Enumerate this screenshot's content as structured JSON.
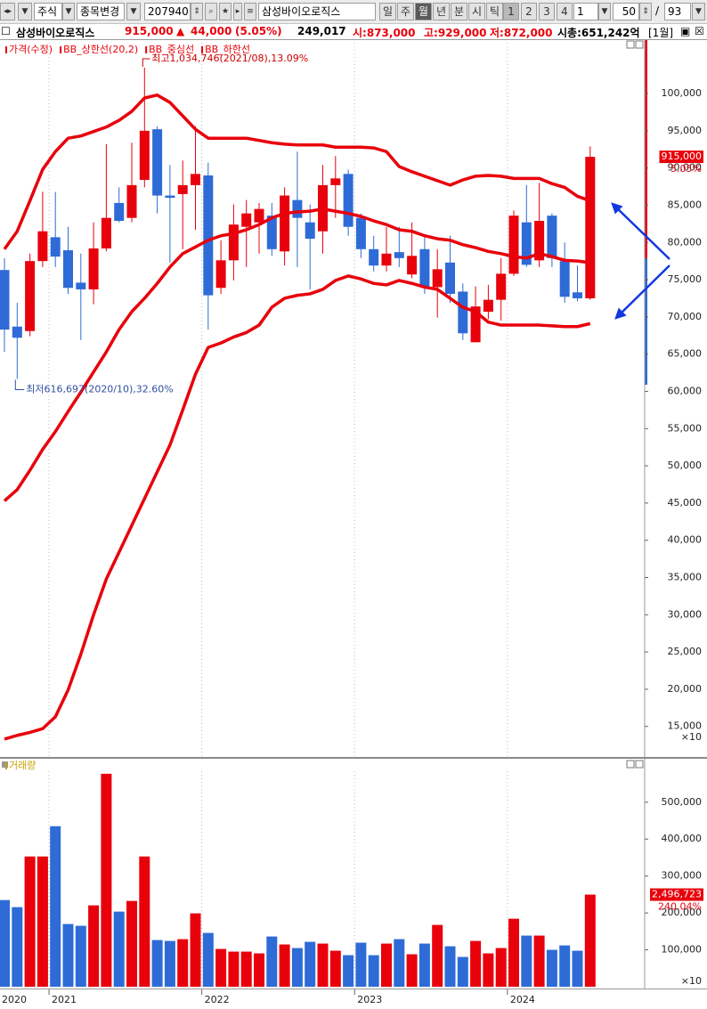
{
  "toolbar": {
    "market": "주식",
    "change_stock": "종목변경",
    "code": "207940",
    "name": "삼성바이오로직스",
    "periods": [
      "일",
      "주",
      "월",
      "년",
      "분",
      "시",
      "틱"
    ],
    "selected_period": "월",
    "presets": [
      "1",
      "2",
      "3",
      "4"
    ],
    "selected_preset": "1",
    "interval": "1",
    "count": "50",
    "separator": "/",
    "total": "93"
  },
  "header": {
    "name": "삼성바이오로직스",
    "price": "915,000",
    "arrow": "▲",
    "change": "44,000",
    "change_pct": "(5.05%)",
    "volume": "249,017",
    "open": "시:873,000",
    "high": "고:929,000",
    "low": "저:872,000",
    "market_cap": "시총:651,242억",
    "period": "[1월]"
  },
  "chart_data": [
    {
      "type": "candlestick",
      "up_color": "#e8000b",
      "down_color": "#2e6bd6",
      "grid": "x",
      "categories": [
        "2020",
        null,
        null,
        null,
        "2021",
        null,
        null,
        null,
        null,
        null,
        null,
        null,
        null,
        null,
        null,
        null,
        "2022",
        null,
        null,
        null,
        null,
        null,
        null,
        null,
        null,
        null,
        null,
        null,
        "2023",
        null,
        null,
        null,
        null,
        null,
        null,
        null,
        null,
        null,
        null,
        null,
        "2024",
        null,
        null,
        null,
        null,
        null,
        null
      ],
      "candles": {
        "name": "가격(수정)",
        "open": [
          76300,
          68700,
          68100,
          77500,
          80700,
          78950,
          74600,
          73700,
          79200,
          85300,
          83300,
          88400,
          95200,
          86300,
          86500,
          87700,
          89000,
          73900,
          77600,
          82100,
          82700,
          83600,
          78800,
          85700,
          82700,
          81500,
          87700,
          89200,
          83300,
          79100,
          76900,
          78700,
          75700,
          79100,
          74000,
          77300,
          73400,
          66600,
          70700,
          72300,
          75800,
          82700,
          77600,
          83600,
          77500,
          73300,
          72500
        ],
        "high": [
          77900,
          71900,
          78500,
          86800,
          86800,
          82100,
          78500,
          82700,
          93200,
          87400,
          93400,
          103474.6,
          95600,
          90400,
          91000,
          95600,
          90700,
          80300,
          85100,
          85700,
          85300,
          85300,
          87400,
          92200,
          85100,
          90400,
          91600,
          89800,
          83900,
          80900,
          82100,
          82100,
          82700,
          80900,
          79100,
          80900,
          74500,
          74100,
          74300,
          77900,
          84300,
          87700,
          88000,
          83900,
          80000,
          76900,
          92900
        ],
        "low": [
          65300,
          61669.7,
          67400,
          76700,
          76700,
          73100,
          66900,
          71700,
          78800,
          82700,
          82700,
          87400,
          83900,
          77300,
          79100,
          81700,
          68300,
          73100,
          74900,
          76700,
          78500,
          78200,
          76900,
          76700,
          73700,
          78500,
          83300,
          80900,
          77900,
          76100,
          76100,
          76700,
          75200,
          73100,
          69900,
          71900,
          66900,
          66600,
          69700,
          69500,
          75500,
          76700,
          76700,
          76700,
          71900,
          72100,
          72300
        ],
        "close": [
          68300,
          67200,
          77500,
          81500,
          78100,
          73900,
          73700,
          79200,
          83300,
          82900,
          87700,
          95000,
          86300,
          86000,
          87700,
          89200,
          72900,
          77600,
          82400,
          83900,
          84500,
          79100,
          86300,
          83300,
          80500,
          87700,
          88600,
          82100,
          79100,
          76900,
          78500,
          77900,
          78200,
          74000,
          76400,
          73100,
          67800,
          71400,
          72300,
          75800,
          83600,
          77000,
          82900,
          77900,
          72700,
          72500,
          91500
        ]
      },
      "series": [
        {
          "name": "BB_상한선(20,2)",
          "color": "#e8000b",
          "values": [
            79100,
            81500,
            85600,
            89800,
            92200,
            94000,
            94300,
            94900,
            95500,
            96400,
            97600,
            99400,
            99800,
            98800,
            97000,
            95200,
            94000,
            94000,
            94000,
            94000,
            93700,
            93400,
            93200,
            93100,
            93100,
            93100,
            92800,
            92800,
            92800,
            92700,
            92200,
            90200,
            89500,
            88900,
            88300,
            87700,
            88400,
            88900,
            89000,
            88900,
            88600,
            88600,
            88600,
            87900,
            87400,
            86200,
            85600
          ]
        },
        {
          "name": "BB_중심선",
          "color": "#e8000b",
          "values": [
            45300,
            46800,
            49400,
            52200,
            54600,
            57300,
            59900,
            62600,
            65300,
            68300,
            70700,
            72500,
            74500,
            76700,
            78500,
            79400,
            80300,
            80900,
            81200,
            81700,
            82400,
            83300,
            83900,
            84100,
            84200,
            84500,
            84200,
            83900,
            83500,
            82900,
            82400,
            81700,
            81500,
            80900,
            80500,
            80300,
            79700,
            79300,
            78800,
            78500,
            78100,
            77900,
            78500,
            78100,
            77600,
            77500,
            77300
          ]
        },
        {
          "name": "BB_하한선",
          "color": "#e8000b",
          "values": [
            13300,
            13800,
            14200,
            14700,
            16300,
            19900,
            24700,
            30000,
            34800,
            38400,
            42000,
            45600,
            49200,
            52800,
            57500,
            62300,
            65900,
            66500,
            67300,
            67900,
            68900,
            71300,
            72500,
            72900,
            73100,
            73700,
            74900,
            75500,
            75100,
            74500,
            74300,
            74900,
            74500,
            74000,
            73700,
            72500,
            71300,
            70700,
            69300,
            68900,
            68900,
            68900,
            68900,
            68800,
            68700,
            68700,
            69100
          ]
        }
      ],
      "ylim": [
        10900,
        107300
      ],
      "yticks": [
        {
          "value": 15000,
          "label": "15,000"
        },
        {
          "value": 20000,
          "label": "20,000"
        },
        {
          "value": 25000,
          "label": "25,000"
        },
        {
          "value": 30000,
          "label": "30,000"
        },
        {
          "value": 35000,
          "label": "35,000"
        },
        {
          "value": 40000,
          "label": "40,000"
        },
        {
          "value": 45000,
          "label": "45,000"
        },
        {
          "value": 50000,
          "label": "50,000"
        },
        {
          "value": 55000,
          "label": "55,000"
        },
        {
          "value": 60000,
          "label": "60,000"
        },
        {
          "value": 65000,
          "label": "65,000"
        },
        {
          "value": 70000,
          "label": "70,000"
        },
        {
          "value": 75000,
          "label": "75,000"
        },
        {
          "value": 80000,
          "label": "80,000"
        },
        {
          "value": 85000,
          "label": "85,000"
        },
        {
          "value": 90000,
          "label": "90,000"
        },
        {
          "value": 95000,
          "label": "95,000"
        },
        {
          "value": 100000,
          "label": "100,000"
        }
      ],
      "axis_multiplier": "×10",
      "last_label": "915,000",
      "last_change": "5.05%",
      "high_annotation": "최고1,034,746(2021/08),13.09%",
      "low_annotation": "최저616,697(2020/10),32.60%"
    },
    {
      "type": "bar",
      "series": [
        {
          "name": "거래량",
          "color": "#c8a000",
          "values": [
            234900,
            215700,
            353000,
            353000,
            435000,
            169900,
            165100,
            220500,
            577100,
            203600,
            232500,
            353000,
            126500,
            124100,
            128900,
            198800,
            145800,
            102400,
            95200,
            95200,
            90400,
            136100,
            114500,
            104800,
            121700,
            116900,
            97600,
            85500,
            119300,
            85500,
            116900,
            128900,
            88000,
            116900,
            167500,
            109600,
            80700,
            124100,
            90400,
            104800,
            184300,
            138600,
            138600,
            100000,
            112000,
            97600,
            249672.3
          ]
        }
      ],
      "ylim": [
        0,
        584000
      ],
      "yticks": [
        {
          "value": 100000,
          "label": "100,000"
        },
        {
          "value": 200000,
          "label": "200,000"
        },
        {
          "value": 300000,
          "label": "300,000"
        },
        {
          "value": 400000,
          "label": "400,000"
        },
        {
          "value": 500000,
          "label": "500,000"
        }
      ],
      "axis_multiplier": "×10",
      "last_label": "2,496,723",
      "last_change": "240.04%"
    }
  ]
}
